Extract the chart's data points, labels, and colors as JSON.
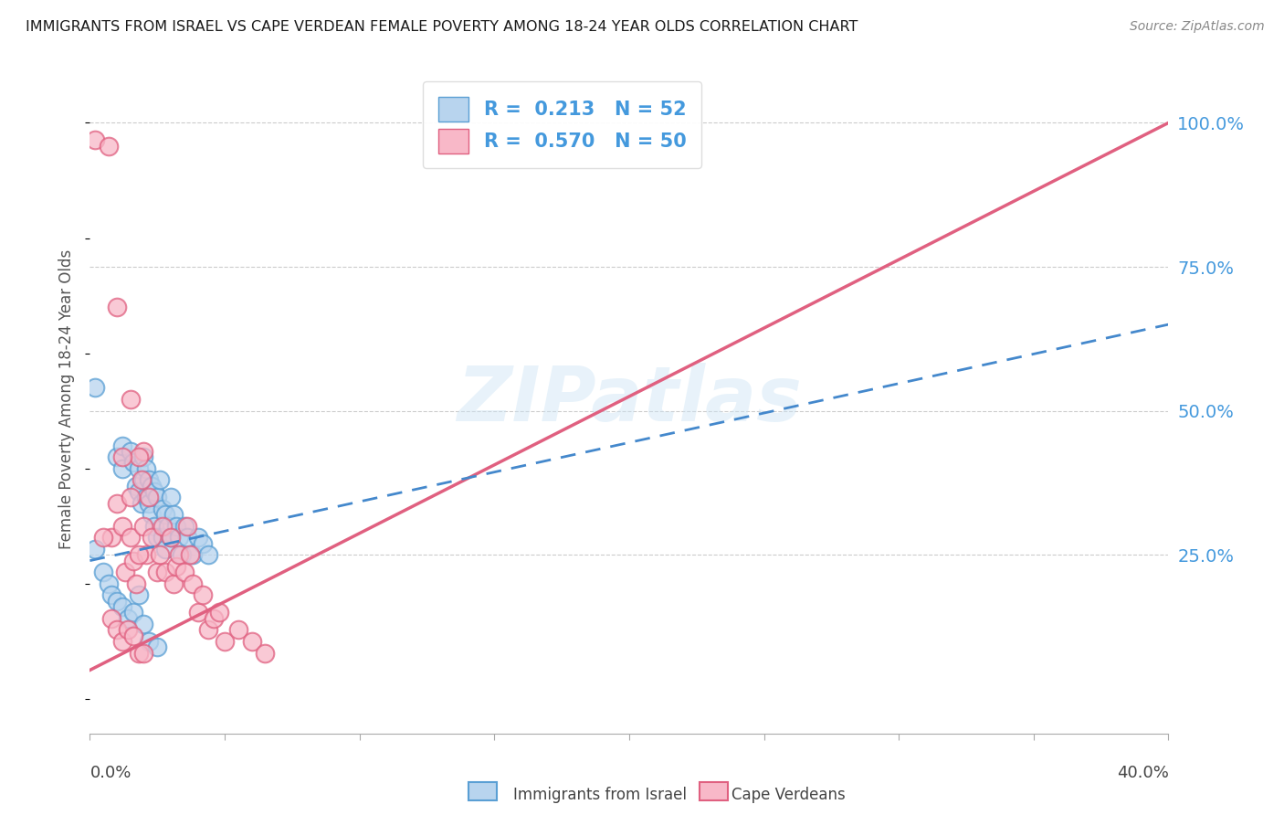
{
  "title": "IMMIGRANTS FROM ISRAEL VS CAPE VERDEAN FEMALE POVERTY AMONG 18-24 YEAR OLDS CORRELATION CHART",
  "source": "Source: ZipAtlas.com",
  "ylabel": "Female Poverty Among 18-24 Year Olds",
  "y_tick_labels": [
    "25.0%",
    "50.0%",
    "75.0%",
    "100.0%"
  ],
  "y_tick_values": [
    0.25,
    0.5,
    0.75,
    1.0
  ],
  "legend_label1": "Immigrants from Israel",
  "legend_label2": "Cape Verdeans",
  "R1": "0.213",
  "N1": "52",
  "R2": "0.570",
  "N2": "50",
  "color_blue_fill": "#b8d4ee",
  "color_blue_edge": "#5a9fd4",
  "color_pink_fill": "#f8b8c8",
  "color_pink_edge": "#e06080",
  "color_blue_text": "#4499dd",
  "color_blue_line": "#4488cc",
  "color_pink_line": "#e06080",
  "watermark": "ZIPatlas",
  "blue_scatter_x": [
    0.002,
    0.01,
    0.012,
    0.012,
    0.015,
    0.016,
    0.017,
    0.018,
    0.018,
    0.019,
    0.02,
    0.02,
    0.021,
    0.021,
    0.022,
    0.022,
    0.023,
    0.023,
    0.024,
    0.024,
    0.025,
    0.025,
    0.026,
    0.027,
    0.027,
    0.028,
    0.028,
    0.029,
    0.03,
    0.03,
    0.031,
    0.032,
    0.033,
    0.034,
    0.035,
    0.036,
    0.038,
    0.04,
    0.042,
    0.044,
    0.002,
    0.005,
    0.007,
    0.008,
    0.01,
    0.012,
    0.014,
    0.016,
    0.018,
    0.02,
    0.022,
    0.025
  ],
  "blue_scatter_y": [
    0.54,
    0.42,
    0.44,
    0.4,
    0.43,
    0.41,
    0.37,
    0.4,
    0.36,
    0.34,
    0.42,
    0.38,
    0.4,
    0.35,
    0.38,
    0.34,
    0.37,
    0.32,
    0.36,
    0.3,
    0.35,
    0.28,
    0.38,
    0.33,
    0.28,
    0.32,
    0.26,
    0.3,
    0.35,
    0.28,
    0.32,
    0.3,
    0.28,
    0.25,
    0.3,
    0.28,
    0.25,
    0.28,
    0.27,
    0.25,
    0.26,
    0.22,
    0.2,
    0.18,
    0.17,
    0.16,
    0.14,
    0.15,
    0.18,
    0.13,
    0.1,
    0.09
  ],
  "pink_scatter_x": [
    0.002,
    0.01,
    0.015,
    0.02,
    0.008,
    0.01,
    0.012,
    0.013,
    0.015,
    0.016,
    0.017,
    0.018,
    0.019,
    0.02,
    0.021,
    0.022,
    0.023,
    0.025,
    0.026,
    0.027,
    0.028,
    0.03,
    0.031,
    0.032,
    0.033,
    0.035,
    0.036,
    0.037,
    0.038,
    0.04,
    0.042,
    0.044,
    0.046,
    0.048,
    0.05,
    0.055,
    0.06,
    0.065,
    0.005,
    0.008,
    0.01,
    0.012,
    0.014,
    0.016,
    0.018,
    0.02,
    0.007,
    0.012,
    0.015,
    0.018
  ],
  "pink_scatter_y": [
    0.97,
    0.68,
    0.52,
    0.43,
    0.28,
    0.34,
    0.3,
    0.22,
    0.28,
    0.24,
    0.2,
    0.42,
    0.38,
    0.3,
    0.25,
    0.35,
    0.28,
    0.22,
    0.25,
    0.3,
    0.22,
    0.28,
    0.2,
    0.23,
    0.25,
    0.22,
    0.3,
    0.25,
    0.2,
    0.15,
    0.18,
    0.12,
    0.14,
    0.15,
    0.1,
    0.12,
    0.1,
    0.08,
    0.28,
    0.14,
    0.12,
    0.1,
    0.12,
    0.11,
    0.08,
    0.08,
    0.96,
    0.42,
    0.35,
    0.25
  ],
  "pink_line_x0": 0.0,
  "pink_line_x1": 0.4,
  "pink_line_y0": 0.05,
  "pink_line_y1": 1.0,
  "blue_line_x0": 0.0,
  "blue_line_x1": 0.4,
  "blue_line_y0": 0.24,
  "blue_line_y1": 0.65,
  "xmin": 0.0,
  "xmax": 0.4,
  "ymin": -0.06,
  "ymax": 1.1
}
